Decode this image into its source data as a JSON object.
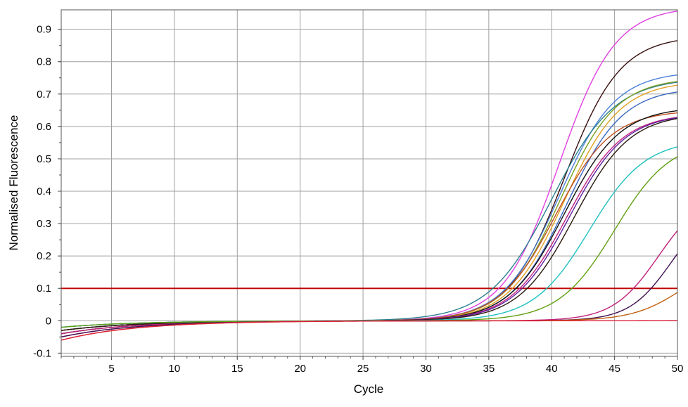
{
  "chart_data": {
    "type": "line",
    "xlabel": "Cycle",
    "ylabel": "Normalised Fluorescence",
    "xlim": [
      1,
      50
    ],
    "ylim": [
      -0.11,
      0.96
    ],
    "xticks": [
      5,
      10,
      15,
      20,
      25,
      30,
      35,
      40,
      45,
      50
    ],
    "yticks": [
      -0.1,
      0,
      0.1,
      0.2,
      0.3,
      0.4,
      0.5,
      0.6,
      0.7,
      0.8,
      0.9
    ],
    "xtick_labels": [
      "5",
      "10",
      "15",
      "20",
      "25",
      "30",
      "35",
      "40",
      "45",
      "50"
    ],
    "ytick_labels": [
      "-0.1",
      "0",
      "0.1",
      "0.2",
      "0.3",
      "0.4",
      "0.5",
      "0.6",
      "0.7",
      "0.8",
      "0.9"
    ],
    "grid": true,
    "threshold": {
      "y": 0.1,
      "color": "#c00000"
    },
    "series": [
      {
        "color": "#e040e0",
        "start": -0.03,
        "midpoint": 40.6,
        "slope": 0.45,
        "plateau": 0.97
      },
      {
        "color": "#3a1010",
        "start": -0.03,
        "midpoint": 41.0,
        "slope": 0.45,
        "plateau": 0.88
      },
      {
        "color": "#4a7fd8",
        "start": -0.02,
        "midpoint": 40.6,
        "slope": 0.45,
        "plateau": 0.77
      },
      {
        "color": "#2a8090",
        "start": -0.03,
        "midpoint": 40.0,
        "slope": 0.4,
        "plateau": 0.75
      },
      {
        "color": "#7aa020",
        "start": -0.03,
        "midpoint": 40.7,
        "slope": 0.45,
        "plateau": 0.75
      },
      {
        "color": "#e0a020",
        "start": -0.03,
        "midpoint": 41.0,
        "slope": 0.45,
        "plateau": 0.74
      },
      {
        "color": "#3a66c0",
        "start": -0.02,
        "midpoint": 41.2,
        "slope": 0.45,
        "plateau": 0.72
      },
      {
        "color": "#c05020",
        "start": -0.04,
        "midpoint": 40.3,
        "slope": 0.45,
        "plateau": 0.65
      },
      {
        "color": "#101010",
        "start": -0.04,
        "midpoint": 41.0,
        "slope": 0.45,
        "plateau": 0.66
      },
      {
        "color": "#c02080",
        "start": -0.04,
        "midpoint": 41.2,
        "slope": 0.45,
        "plateau": 0.64
      },
      {
        "color": "#6020a0",
        "start": -0.03,
        "midpoint": 41.4,
        "slope": 0.45,
        "plateau": 0.64
      },
      {
        "color": "#2a1a10",
        "start": -0.03,
        "midpoint": 41.8,
        "slope": 0.45,
        "plateau": 0.64
      },
      {
        "color": "#20c0c0",
        "start": -0.02,
        "midpoint": 43.0,
        "slope": 0.45,
        "plateau": 0.56
      },
      {
        "color": "#60a010",
        "start": -0.02,
        "midpoint": 45.0,
        "slope": 0.45,
        "plateau": 0.56
      },
      {
        "color": "#c0207a",
        "start": -0.05,
        "midpoint": 48.5,
        "slope": 0.55,
        "plateau": 0.4
      },
      {
        "color": "#401050",
        "start": -0.05,
        "midpoint": 49.5,
        "slope": 0.6,
        "plateau": 0.36
      },
      {
        "color": "#c06010",
        "start": -0.06,
        "midpoint": 50.5,
        "slope": 0.5,
        "plateau": 0.2
      },
      {
        "color": "#e0203a",
        "start": -0.06,
        "midpoint": 60.0,
        "slope": 0.5,
        "plateau": 0.1
      }
    ]
  }
}
